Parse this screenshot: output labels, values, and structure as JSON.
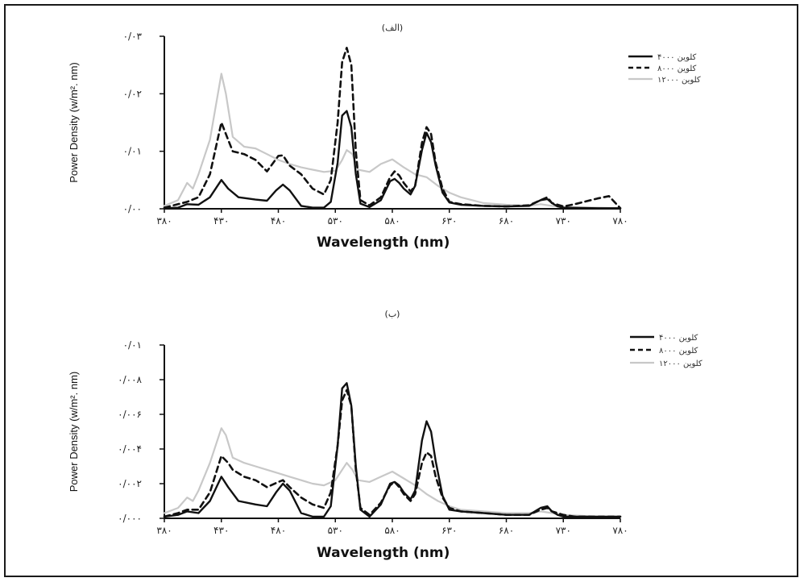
{
  "chart_data": [
    {
      "type": "line",
      "title": "(الف)",
      "xlabel": "Wavelength (nm)",
      "ylabel": "Power Density (w/m². nm)",
      "xlim": [
        380,
        780
      ],
      "ylim": [
        0,
        0.03
      ],
      "xticks": [
        380,
        430,
        480,
        530,
        580,
        630,
        680,
        730,
        780
      ],
      "xtick_labels": [
        "۳۸۰",
        "۴۳۰",
        "۴۸۰",
        "۵۳۰",
        "۵۸۰",
        "۶۳۰",
        "۶۸۰",
        "۷۳۰",
        "۷۸۰"
      ],
      "yticks": [
        0,
        0.01,
        0.02,
        0.03
      ],
      "ytick_labels": [
        "۰/۰۰",
        "۰/۰۱",
        "۰/۰۲",
        "۰/۰۳"
      ],
      "legend_position": "top-right",
      "series": [
        {
          "name": "۴۰۰۰ کلوین",
          "style": "solid",
          "color": "#111111",
          "x": [
            380,
            392,
            400,
            410,
            420,
            430,
            436,
            445,
            460,
            470,
            478,
            484,
            490,
            500,
            510,
            520,
            526,
            532,
            536,
            540,
            544,
            548,
            552,
            560,
            570,
            578,
            582,
            586,
            590,
            596,
            600,
            606,
            610,
            614,
            618,
            624,
            630,
            640,
            660,
            680,
            700,
            710,
            716,
            720,
            725,
            730,
            760,
            780
          ],
          "y": [
            0.0001,
            0.0002,
            0.0008,
            0.0007,
            0.002,
            0.005,
            0.0035,
            0.002,
            0.0016,
            0.0014,
            0.0032,
            0.0042,
            0.0032,
            0.0005,
            0.0002,
            0.0002,
            0.0012,
            0.008,
            0.0162,
            0.017,
            0.0142,
            0.006,
            0.0009,
            0.0003,
            0.0015,
            0.0048,
            0.0052,
            0.0045,
            0.0035,
            0.0025,
            0.004,
            0.0102,
            0.0132,
            0.0116,
            0.0075,
            0.0028,
            0.0011,
            0.0007,
            0.0005,
            0.0004,
            0.0005,
            0.0015,
            0.0017,
            0.001,
            0.0004,
            0.0002,
            0.0001,
            0.0001
          ]
        },
        {
          "name": "۸۰۰۰ کلوین",
          "style": "dashed",
          "color": "#111111",
          "x": [
            380,
            392,
            400,
            410,
            420,
            430,
            436,
            440,
            450,
            460,
            470,
            480,
            484,
            490,
            500,
            510,
            520,
            526,
            532,
            536,
            540,
            544,
            548,
            552,
            560,
            570,
            578,
            582,
            586,
            590,
            596,
            600,
            606,
            610,
            614,
            618,
            624,
            630,
            640,
            660,
            680,
            700,
            710,
            716,
            720,
            730,
            740,
            760,
            770,
            780
          ],
          "y": [
            0.0002,
            0.0008,
            0.0012,
            0.002,
            0.006,
            0.015,
            0.012,
            0.01,
            0.0095,
            0.0085,
            0.0065,
            0.0092,
            0.0093,
            0.0075,
            0.006,
            0.0035,
            0.0025,
            0.005,
            0.015,
            0.0255,
            0.028,
            0.025,
            0.01,
            0.0015,
            0.0006,
            0.002,
            0.0055,
            0.0065,
            0.0058,
            0.0045,
            0.003,
            0.004,
            0.0115,
            0.0142,
            0.013,
            0.008,
            0.0035,
            0.0012,
            0.0008,
            0.0005,
            0.0004,
            0.0006,
            0.0015,
            0.002,
            0.001,
            0.0004,
            0.0008,
            0.0018,
            0.0022,
            0.0001
          ]
        },
        {
          "name": "۱۲۰۰۰ کلوین",
          "style": "solid",
          "color": "#c8c8c8",
          "x": [
            380,
            392,
            400,
            405,
            410,
            420,
            430,
            434,
            440,
            450,
            460,
            470,
            480,
            490,
            500,
            510,
            520,
            530,
            536,
            540,
            545,
            550,
            560,
            570,
            580,
            590,
            600,
            610,
            620,
            630,
            640,
            660,
            680,
            700,
            710,
            720,
            730,
            760,
            780
          ],
          "y": [
            0.0005,
            0.0015,
            0.0045,
            0.0035,
            0.006,
            0.012,
            0.0235,
            0.02,
            0.0125,
            0.0108,
            0.0105,
            0.0095,
            0.0085,
            0.0078,
            0.0072,
            0.0068,
            0.0064,
            0.0066,
            0.0085,
            0.0102,
            0.0095,
            0.0068,
            0.0064,
            0.0078,
            0.0086,
            0.0072,
            0.006,
            0.0055,
            0.004,
            0.0028,
            0.002,
            0.001,
            0.0007,
            0.0005,
            0.0008,
            0.0005,
            0.0003,
            0.0002,
            0.0001
          ]
        }
      ]
    },
    {
      "type": "line",
      "title": "(ب)",
      "xlabel": "Wavelength (nm)",
      "ylabel": "Power Density (w/m². nm)",
      "xlim": [
        380,
        780
      ],
      "ylim": [
        0,
        0.01
      ],
      "xticks": [
        380,
        430,
        480,
        530,
        580,
        630,
        680,
        730,
        780
      ],
      "xtick_labels": [
        "۳۸۰",
        "۴۳۰",
        "۴۸۰",
        "۵۳۰",
        "۵۸۰",
        "۶۳۰",
        "۶۸۰",
        "۷۳۰",
        "۷۸۰"
      ],
      "yticks": [
        0,
        0.002,
        0.004,
        0.006,
        0.008,
        0.01
      ],
      "ytick_labels": [
        "۰/۰۰۰",
        "۰/۰۰۲",
        "۰/۰۰۴",
        "۰/۰۰۶",
        "۰/۰۰۸",
        "۰/۰۱"
      ],
      "legend_position": "top-right",
      "series": [
        {
          "name": "۴۰۰۰ کلوین",
          "style": "solid",
          "color": "#111111",
          "x": [
            380,
            392,
            400,
            410,
            420,
            430,
            436,
            445,
            460,
            470,
            478,
            484,
            490,
            500,
            510,
            520,
            526,
            532,
            536,
            540,
            544,
            548,
            552,
            560,
            570,
            578,
            582,
            586,
            590,
            596,
            600,
            606,
            610,
            614,
            618,
            624,
            630,
            640,
            660,
            680,
            700,
            710,
            716,
            720,
            725,
            730,
            760,
            780
          ],
          "y": [
            0.0001,
            0.0002,
            0.0004,
            0.0003,
            0.001,
            0.0024,
            0.0018,
            0.001,
            0.0008,
            0.0007,
            0.0015,
            0.002,
            0.0016,
            0.0003,
            0.0001,
            0.0001,
            0.0007,
            0.0042,
            0.0075,
            0.0078,
            0.0065,
            0.003,
            0.0005,
            0.0001,
            0.0008,
            0.002,
            0.0021,
            0.0019,
            0.0015,
            0.0011,
            0.0016,
            0.0045,
            0.0056,
            0.005,
            0.0033,
            0.0013,
            0.0005,
            0.0004,
            0.0003,
            0.0002,
            0.0002,
            0.0006,
            0.0007,
            0.0004,
            0.0002,
            0.0001,
            0.0001,
            0.0001
          ]
        },
        {
          "name": "۸۰۰۰ کلوین",
          "style": "dashed",
          "color": "#111111",
          "x": [
            380,
            392,
            400,
            410,
            420,
            430,
            436,
            440,
            450,
            460,
            470,
            480,
            484,
            490,
            500,
            510,
            520,
            526,
            532,
            536,
            540,
            544,
            548,
            552,
            560,
            570,
            578,
            582,
            586,
            590,
            596,
            600,
            606,
            610,
            614,
            618,
            624,
            630,
            640,
            660,
            680,
            700,
            710,
            716,
            720,
            730,
            740,
            760,
            770,
            780
          ],
          "y": [
            0.0001,
            0.0003,
            0.0005,
            0.0005,
            0.0015,
            0.0036,
            0.0032,
            0.0028,
            0.0024,
            0.0022,
            0.0018,
            0.0021,
            0.0022,
            0.0018,
            0.0012,
            0.0008,
            0.0006,
            0.0015,
            0.0042,
            0.0068,
            0.0074,
            0.0065,
            0.0028,
            0.0006,
            0.0002,
            0.0009,
            0.0019,
            0.0021,
            0.0018,
            0.0014,
            0.001,
            0.0014,
            0.0032,
            0.0038,
            0.0036,
            0.0024,
            0.0012,
            0.0006,
            0.0004,
            0.0003,
            0.0002,
            0.0002,
            0.0005,
            0.0006,
            0.0004,
            0.0002,
            0.0001,
            0.0001,
            0.0001,
            0.0001
          ]
        },
        {
          "name": "۱۲۰۰۰ کلوین",
          "style": "solid",
          "color": "#c8c8c8",
          "x": [
            380,
            392,
            400,
            405,
            410,
            420,
            430,
            434,
            440,
            450,
            460,
            470,
            480,
            490,
            500,
            510,
            520,
            530,
            536,
            540,
            545,
            550,
            560,
            570,
            580,
            590,
            600,
            610,
            620,
            630,
            640,
            660,
            680,
            700,
            710,
            720,
            730,
            760,
            780
          ],
          "y": [
            0.0003,
            0.0006,
            0.0012,
            0.001,
            0.0016,
            0.0032,
            0.0052,
            0.0048,
            0.0035,
            0.0032,
            0.003,
            0.0028,
            0.0026,
            0.0024,
            0.0022,
            0.002,
            0.0019,
            0.0022,
            0.0028,
            0.0032,
            0.0028,
            0.0022,
            0.0021,
            0.0024,
            0.0027,
            0.0023,
            0.0019,
            0.0014,
            0.001,
            0.0007,
            0.0005,
            0.0004,
            0.0003,
            0.0003,
            0.0004,
            0.0003,
            0.0002,
            0.0001,
            0.0001
          ]
        }
      ]
    }
  ]
}
